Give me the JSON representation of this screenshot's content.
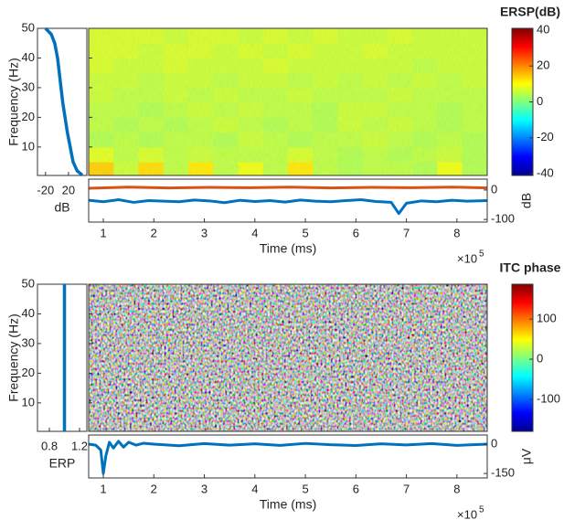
{
  "chart_data": [
    {
      "type": "time-frequency",
      "colorbar": {
        "title": "ERSP(dB)",
        "ylim": [
          -41,
          41
        ],
        "yticks": [
          -40,
          -20,
          0,
          20,
          40
        ]
      },
      "heatmap": {
        "y_label": "Frequency (Hz)",
        "ylim": [
          0.4,
          50
        ],
        "yticks": [
          10,
          20,
          30,
          40,
          50
        ],
        "xlim": [
          71000,
          860000
        ],
        "times": [
          95650,
          144950,
          194250,
          243550,
          292850,
          342150,
          391450,
          440750,
          490050,
          539350,
          588650,
          637950,
          687250,
          736550,
          785850,
          835150
        ],
        "freqs": [
          2.5,
          7.5,
          12.5,
          17.5,
          22.5,
          27.5,
          32.5,
          37.5,
          42.5,
          47.5
        ],
        "values": [
          [
            14,
            6,
            13,
            5,
            12,
            5,
            9,
            5,
            12,
            5,
            4,
            5,
            5,
            4,
            9,
            4
          ],
          [
            8,
            5,
            7,
            5,
            6,
            5,
            5,
            5,
            7,
            5,
            4,
            5,
            4,
            5,
            6,
            4
          ],
          [
            4,
            5,
            4,
            5,
            5,
            4,
            6,
            5,
            4,
            5,
            5,
            6,
            5,
            4,
            5,
            4
          ],
          [
            5,
            4,
            5,
            4,
            5,
            6,
            5,
            4,
            5,
            4,
            6,
            5,
            6,
            5,
            4,
            5
          ],
          [
            5,
            5,
            4,
            5,
            6,
            5,
            6,
            5,
            5,
            4,
            6,
            6,
            5,
            5,
            4,
            5
          ],
          [
            6,
            5,
            5,
            6,
            5,
            6,
            5,
            5,
            6,
            5,
            5,
            5,
            6,
            5,
            5,
            5
          ],
          [
            6,
            6,
            5,
            6,
            6,
            5,
            6,
            6,
            5,
            6,
            5,
            6,
            5,
            6,
            5,
            6
          ],
          [
            7,
            6,
            6,
            7,
            6,
            6,
            6,
            7,
            6,
            6,
            6,
            6,
            6,
            5,
            6,
            6
          ],
          [
            7,
            7,
            6,
            7,
            7,
            6,
            7,
            6,
            7,
            6,
            6,
            7,
            6,
            6,
            6,
            6
          ],
          [
            7,
            7,
            7,
            6,
            7,
            7,
            6,
            7,
            6,
            7,
            6,
            6,
            7,
            6,
            6,
            6
          ]
        ]
      },
      "side": {
        "x_label": "dB",
        "xlim": [
          -34,
          52
        ],
        "xticks": [
          -20,
          20
        ],
        "color": "#0072bd",
        "freqs": [
          50,
          48,
          45,
          40,
          35,
          30,
          25,
          20,
          15,
          10,
          5,
          2,
          0.5
        ],
        "values": [
          -20,
          -10,
          -4,
          1,
          4,
          7,
          10,
          14,
          18,
          23,
          28,
          35,
          44
        ]
      },
      "bottom": {
        "x_label": "Time (ms)",
        "xlim": [
          71000,
          860000
        ],
        "xticks": [
          {
            "value": 100000,
            "label": "1"
          },
          {
            "value": 200000,
            "label": "2"
          },
          {
            "value": 300000,
            "label": "3"
          },
          {
            "value": 400000,
            "label": "4"
          },
          {
            "value": 500000,
            "label": "5"
          },
          {
            "value": 600000,
            "label": "6"
          },
          {
            "value": 700000,
            "label": "7"
          },
          {
            "value": 800000,
            "label": "8"
          }
        ],
        "x_exponent_base": "×10",
        "x_exponent": "5",
        "y_label": "dB",
        "ylim": [
          -109,
          37
        ],
        "yticks": [
          0,
          -100
        ],
        "series": [
          {
            "color": "#d95319",
            "x": [
              71000,
              150000,
              230000,
              310000,
              390000,
              470000,
              550000,
              630000,
              710000,
              790000,
              860000
            ],
            "values": [
              6,
              10,
              7,
              9,
              8,
              10,
              7,
              9,
              8,
              10,
              7
            ]
          },
          {
            "color": "#0072bd",
            "x": [
              71000,
              100000,
              130000,
              160000,
              190000,
              220000,
              250000,
              280000,
              310000,
              340000,
              370000,
              400000,
              430000,
              460000,
              490000,
              520000,
              550000,
              580000,
              610000,
              640000,
              670000,
              685000,
              700000,
              730000,
              760000,
              790000,
              820000,
              860000
            ],
            "values": [
              -35,
              -40,
              -33,
              -42,
              -36,
              -38,
              -40,
              -34,
              -37,
              -43,
              -35,
              -39,
              -36,
              -41,
              -34,
              -38,
              -40,
              -36,
              -33,
              -39,
              -42,
              -80,
              -45,
              -37,
              -40,
              -35,
              -38,
              -36
            ]
          }
        ]
      }
    },
    {
      "type": "time-frequency",
      "colorbar": {
        "title": "ITC phase",
        "ylim": [
          -180,
          187
        ],
        "yticks": [
          -100,
          0,
          100
        ]
      },
      "heatmap": {
        "y_label": "Frequency (Hz)",
        "ylim": [
          0.4,
          50
        ],
        "yticks": [
          10,
          20,
          30,
          40,
          50
        ],
        "xlim": [
          71000,
          860000
        ]
      },
      "side": {
        "x_label": "ERP",
        "xlim": [
          0.642,
          1.297
        ],
        "xticks": [
          0.8,
          1.2
        ],
        "color": "#0072bd",
        "freqs": [
          0.4,
          50
        ],
        "values": [
          1,
          1
        ]
      },
      "bottom": {
        "x_label": "Time (ms)",
        "xlim": [
          71000,
          860000
        ],
        "xticks": [
          {
            "value": 100000,
            "label": "1"
          },
          {
            "value": 200000,
            "label": "2"
          },
          {
            "value": 300000,
            "label": "3"
          },
          {
            "value": 400000,
            "label": "4"
          },
          {
            "value": 500000,
            "label": "5"
          },
          {
            "value": 600000,
            "label": "6"
          },
          {
            "value": 700000,
            "label": "7"
          },
          {
            "value": 800000,
            "label": "8"
          }
        ],
        "x_exponent_base": "×10",
        "x_exponent": "5",
        "y_label": "μV",
        "ylim": [
          -173,
          47
        ],
        "yticks": [
          0,
          -150
        ],
        "series": [
          {
            "color": "#0072bd",
            "x": [
              71000,
              85000,
              95000,
              100000,
              105000,
              112000,
              120000,
              130000,
              140000,
              150000,
              165000,
              180000,
              200000,
              250000,
              300000,
              350000,
              400000,
              450000,
              500000,
              550000,
              600000,
              650000,
              700000,
              750000,
              800000,
              860000
            ],
            "values": [
              0,
              -5,
              -30,
              -150,
              -60,
              10,
              -20,
              15,
              -15,
              10,
              -5,
              5,
              0,
              -8,
              3,
              -5,
              2,
              -6,
              4,
              -3,
              -7,
              2,
              -4,
              3,
              -6,
              0
            ]
          }
        ]
      }
    }
  ]
}
